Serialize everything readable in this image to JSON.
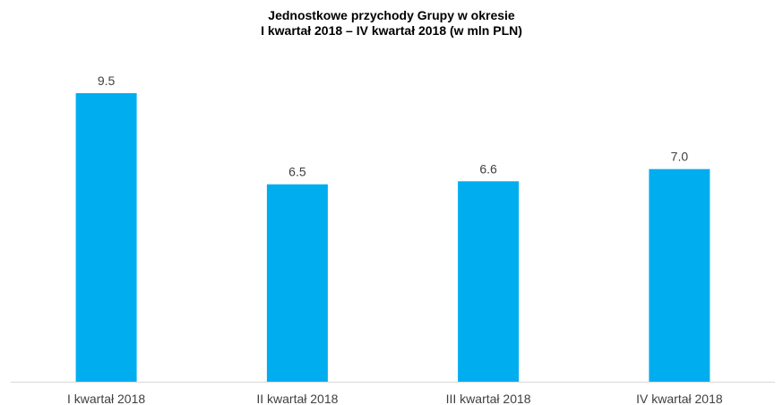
{
  "chart_data": {
    "type": "bar",
    "title_line1": "Jednostkowe przychody Grupy w okresie",
    "title_line2": "I kwartał 2018 – IV kwartał 2018 (w mln PLN)",
    "categories": [
      "I kwartał 2018",
      "II kwartał 2018",
      "III kwartał 2018",
      "IV kwartał 2018"
    ],
    "values": [
      9.5,
      6.5,
      6.6,
      7.0
    ],
    "value_labels": [
      "9.5",
      "6.5",
      "6.6",
      "7.0"
    ],
    "xlabel": "",
    "ylabel": "",
    "ylim": [
      0,
      9.5
    ],
    "grid": false,
    "legend": "none",
    "bar_color": "#00AEEF",
    "axis_color": "#D9D9D9"
  }
}
